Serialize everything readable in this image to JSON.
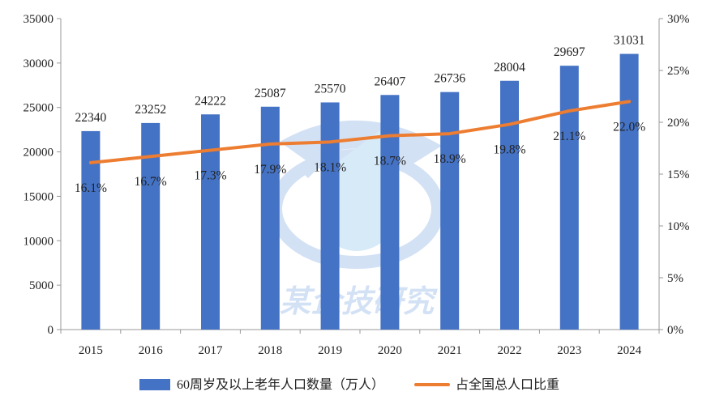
{
  "chart_data": {
    "type": "bar+line",
    "categories": [
      "2015",
      "2016",
      "2017",
      "2018",
      "2019",
      "2020",
      "2021",
      "2022",
      "2023",
      "2024"
    ],
    "series": [
      {
        "name": "60周岁及以上老年人口数量（万人）",
        "type": "bar",
        "axis": "left",
        "values": [
          22340,
          23252,
          24222,
          25087,
          25570,
          26407,
          26736,
          28004,
          29697,
          31031
        ],
        "color": "#4472C4"
      },
      {
        "name": "占全国总人口比重",
        "type": "line",
        "axis": "right",
        "values": [
          16.1,
          16.7,
          17.3,
          17.9,
          18.1,
          18.7,
          18.9,
          19.8,
          21.1,
          22.0
        ],
        "labels": [
          "16.1%",
          "16.7%",
          "17.3%",
          "17.9%",
          "18.1%",
          "18.7%",
          "18.9%",
          "19.8%",
          "21.1%",
          "22.0%"
        ],
        "color": "#ED7D31"
      }
    ],
    "y_left": {
      "min": 0,
      "max": 35000,
      "ticks": [
        "0",
        "5000",
        "10000",
        "15000",
        "20000",
        "25000",
        "30000",
        "35000"
      ]
    },
    "y_right": {
      "min": 0,
      "max": 30,
      "ticks": [
        "0%",
        "5%",
        "10%",
        "15%",
        "20%",
        "25%",
        "30%"
      ]
    },
    "legend_position": "bottom-center",
    "watermark_text": "某企技研究"
  }
}
